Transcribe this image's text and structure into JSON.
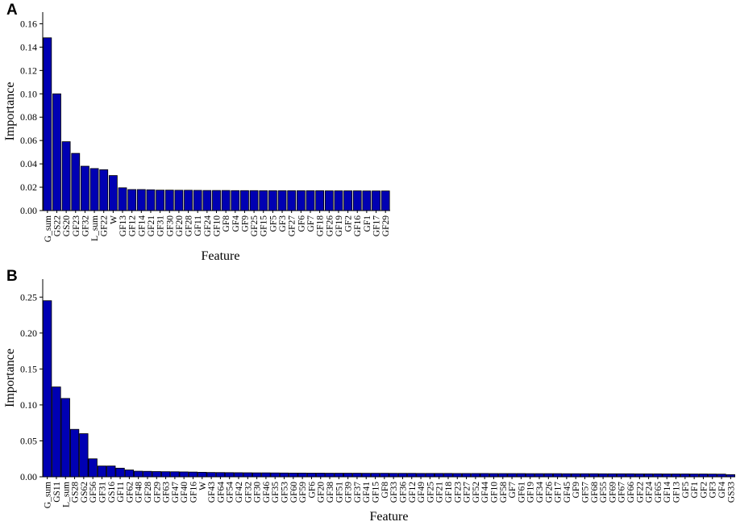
{
  "panels": [
    {
      "letter": "A"
    },
    {
      "letter": "B"
    }
  ],
  "chart_data": [
    {
      "type": "bar",
      "xlabel": "Feature",
      "ylabel": "Importance",
      "ylim": [
        0,
        0.17
      ],
      "yticks": [
        "0.00",
        "0.02",
        "0.04",
        "0.06",
        "0.08",
        "0.10",
        "0.12",
        "0.14",
        "0.16"
      ],
      "bar_color": "#0000b3",
      "categories": [
        "G_sum",
        "GS22",
        "GS20",
        "GF23",
        "GF32",
        "L_sum",
        "GF22",
        "W",
        "GF13",
        "GF12",
        "GF14",
        "GF21",
        "GF31",
        "GF30",
        "GF20",
        "GF28",
        "GF11",
        "GF24",
        "GF10",
        "GF8",
        "GF4",
        "GF9",
        "GF25",
        "GF15",
        "GF5",
        "GF3",
        "GF27",
        "GF6",
        "GF7",
        "GF18",
        "GF26",
        "GF19",
        "GF2",
        "GF16",
        "GF1",
        "GF17",
        "GF29"
      ],
      "values": [
        0.148,
        0.1,
        0.059,
        0.049,
        0.038,
        0.036,
        0.035,
        0.03,
        0.0195,
        0.018,
        0.018,
        0.0178,
        0.0175,
        0.0175,
        0.0174,
        0.0174,
        0.0173,
        0.0172,
        0.0172,
        0.0172,
        0.0171,
        0.0171,
        0.0171,
        0.017,
        0.017,
        0.017,
        0.017,
        0.017,
        0.017,
        0.017,
        0.0169,
        0.0169,
        0.0169,
        0.0169,
        0.0168,
        0.0168,
        0.0168
      ]
    },
    {
      "type": "bar",
      "xlabel": "Feature",
      "ylabel": "Importance",
      "ylim": [
        0,
        0.275
      ],
      "yticks": [
        "0.00",
        "0.05",
        "0.10",
        "0.15",
        "0.20",
        "0.25"
      ],
      "bar_color": "#0000b3",
      "categories": [
        "G_sum",
        "GS11",
        "L_sum",
        "GS28",
        "GS62",
        "GF56",
        "GF31",
        "GS16",
        "GF11",
        "GF62",
        "GF48",
        "GF28",
        "GF29",
        "GF63",
        "GF47",
        "GF40",
        "GF16",
        "W",
        "GF43",
        "GF64",
        "GF54",
        "GF42",
        "GF32",
        "GF30",
        "GF46",
        "GF35",
        "GF53",
        "GF60",
        "GF59",
        "GF6",
        "GF20",
        "GF38",
        "GF51",
        "GF39",
        "GF37",
        "GF41",
        "GF15",
        "GF8",
        "GF33",
        "GF36",
        "GF12",
        "GF49",
        "GF25",
        "GF21",
        "GF18",
        "GF23",
        "GF27",
        "GF52",
        "GF44",
        "GF10",
        "GF58",
        "GF7",
        "GF61",
        "GF19",
        "GF34",
        "GF26",
        "GF17",
        "GF45",
        "GF9",
        "GF57",
        "GF68",
        "GF55",
        "GF69",
        "GF67",
        "GF66",
        "GF22",
        "GF24",
        "GF65",
        "GF14",
        "GF13",
        "GF5",
        "GF1",
        "GF2",
        "GF3",
        "GF4",
        "GS33"
      ],
      "values": [
        0.245,
        0.125,
        0.109,
        0.066,
        0.06,
        0.025,
        0.015,
        0.015,
        0.012,
        0.0095,
        0.0078,
        0.0076,
        0.0073,
        0.0071,
        0.007,
        0.0068,
        0.0066,
        0.0063,
        0.006,
        0.0059,
        0.0058,
        0.0057,
        0.0056,
        0.0055,
        0.0055,
        0.0054,
        0.0053,
        0.0052,
        0.0052,
        0.0051,
        0.0051,
        0.005,
        0.005,
        0.005,
        0.005,
        0.0049,
        0.0049,
        0.0049,
        0.0048,
        0.0048,
        0.0048,
        0.0047,
        0.0047,
        0.0047,
        0.0047,
        0.0046,
        0.0046,
        0.0046,
        0.0046,
        0.0045,
        0.0045,
        0.0045,
        0.0045,
        0.0044,
        0.0044,
        0.0044,
        0.0044,
        0.0043,
        0.0043,
        0.0043,
        0.0043,
        0.0042,
        0.0042,
        0.0042,
        0.0042,
        0.0041,
        0.0041,
        0.0041,
        0.004,
        0.004,
        0.004,
        0.0039,
        0.0039,
        0.0038,
        0.0037,
        0.003
      ]
    }
  ]
}
